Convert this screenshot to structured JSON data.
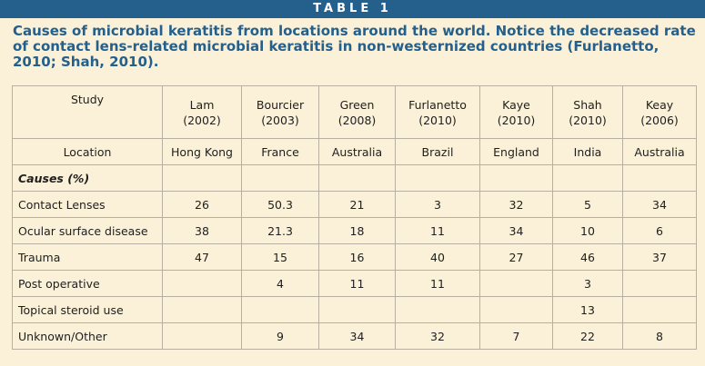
{
  "table_label": "TABLE 1",
  "caption": "Causes of microbial keratitis from locations around the world. Notice the decreased rate of contact lens-related microbial keratitis in non-westernized countries (Furlanetto, 2010; Shah, 2010).",
  "header": {
    "study_label": "Study",
    "studies": [
      {
        "name": "Lam",
        "year": "(2002)"
      },
      {
        "name": "Bourcier",
        "year": "(2003)"
      },
      {
        "name": "Green",
        "year": "(2008)"
      },
      {
        "name": "Furlanetto",
        "year": "(2010)"
      },
      {
        "name": "Kaye",
        "year": "(2010)"
      },
      {
        "name": "Shah",
        "year": "(2010)"
      },
      {
        "name": "Keay",
        "year": "(2006)"
      }
    ]
  },
  "location_row": {
    "label": "Location",
    "values": [
      "Hong Kong",
      "France",
      "Australia",
      "Brazil",
      "England",
      "India",
      "Australia"
    ]
  },
  "causes_label": "Causes (%)",
  "rows": [
    {
      "label": "Contact Lenses",
      "values": [
        "26",
        "50.3",
        "21",
        "3",
        "32",
        "5",
        "34"
      ]
    },
    {
      "label": "Ocular surface disease",
      "values": [
        "38",
        "21.3",
        "18",
        "11",
        "34",
        "10",
        "6"
      ]
    },
    {
      "label": "Trauma",
      "values": [
        "47",
        "15",
        "16",
        "40",
        "27",
        "46",
        "37"
      ]
    },
    {
      "label": "Post operative",
      "values": [
        "",
        "4",
        "11",
        "11",
        "",
        "3",
        ""
      ]
    },
    {
      "label": "Topical steroid use",
      "values": [
        "",
        "",
        "",
        "",
        "",
        "13",
        ""
      ]
    },
    {
      "label": "Unknown/Other",
      "values": [
        "",
        "9",
        "34",
        "32",
        "7",
        "22",
        "8"
      ]
    }
  ]
}
